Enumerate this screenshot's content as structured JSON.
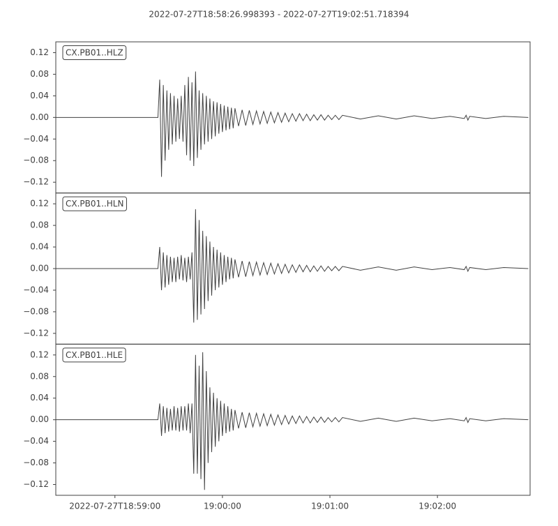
{
  "chart_data": [
    {
      "type": "line",
      "title": "2022-07-27T18:58:26.998393  -  2022-07-27T19:02:51.718394",
      "xlim": [
        0,
        264.72
      ],
      "ylim": [
        -0.14,
        0.14
      ],
      "yticks": [
        {
          "value": -0.12,
          "label": "−0.12"
        },
        {
          "value": -0.08,
          "label": "−0.08"
        },
        {
          "value": -0.04,
          "label": "−0.04"
        },
        {
          "value": 0,
          "label": "0.00"
        },
        0.04,
        0.08,
        0.12
      ],
      "x": [
        0,
        57,
        58,
        59,
        60,
        61,
        62,
        63,
        64,
        65,
        66,
        67,
        68,
        69,
        70,
        71,
        72,
        73,
        74,
        75,
        76,
        77,
        78,
        79,
        80,
        81,
        82,
        83,
        84,
        85,
        86,
        87,
        88,
        89,
        90,
        91,
        92,
        93,
        94,
        95,
        96,
        97,
        98,
        99,
        100,
        102,
        104,
        106,
        108,
        110,
        112,
        114,
        116,
        118,
        120,
        122,
        124,
        126,
        128,
        130,
        132,
        134,
        136,
        138,
        140,
        142,
        144,
        146,
        148,
        150,
        152,
        154,
        156,
        158,
        160,
        170,
        180,
        190,
        200,
        210,
        220,
        228,
        229,
        230,
        231,
        240,
        250,
        263.7
      ],
      "series": [
        {
          "name": "CX.PB01..HLZ",
          "color": "#404040",
          "values": [
            0,
            0,
            0.07,
            -0.11,
            0.06,
            -0.08,
            0.05,
            -0.06,
            0.045,
            -0.05,
            0.04,
            -0.045,
            0.035,
            -0.04,
            0.04,
            -0.045,
            0.06,
            -0.07,
            0.075,
            -0.08,
            0.065,
            -0.09,
            0.085,
            -0.075,
            0.05,
            -0.06,
            0.045,
            -0.05,
            0.04,
            -0.045,
            0.035,
            -0.04,
            0.03,
            -0.035,
            0.028,
            -0.03,
            0.025,
            -0.027,
            0.022,
            -0.024,
            0.02,
            -0.022,
            0.018,
            -0.02,
            0.017,
            -0.016,
            0.014,
            -0.015,
            0.013,
            -0.013,
            0.012,
            -0.012,
            0.011,
            -0.011,
            0.01,
            -0.01,
            0.009,
            -0.009,
            0.008,
            -0.008,
            0.007,
            -0.007,
            0.007,
            -0.006,
            0.006,
            -0.006,
            0.005,
            -0.005,
            0.005,
            -0.005,
            0.004,
            -0.004,
            0.004,
            -0.004,
            0.004,
            -0.003,
            0.003,
            -0.003,
            0.003,
            -0.002,
            0.002,
            -0.002,
            0.004,
            -0.005,
            0.002,
            -0.002,
            0.002,
            0
          ]
        }
      ]
    },
    {
      "type": "line",
      "xlim": [
        0,
        264.72
      ],
      "ylim": [
        -0.14,
        0.14
      ],
      "yticks": [
        {
          "value": -0.12,
          "label": "−0.12"
        },
        {
          "value": -0.08,
          "label": "−0.08"
        },
        {
          "value": -0.04,
          "label": "−0.04"
        },
        {
          "value": 0,
          "label": "0.00"
        },
        0.04,
        0.08,
        0.12
      ],
      "x": [
        0,
        57,
        58,
        59,
        60,
        61,
        62,
        63,
        64,
        65,
        66,
        67,
        68,
        69,
        70,
        71,
        72,
        73,
        74,
        75,
        76,
        77,
        78,
        79,
        80,
        81,
        82,
        83,
        84,
        85,
        86,
        87,
        88,
        89,
        90,
        91,
        92,
        93,
        94,
        95,
        96,
        97,
        98,
        99,
        100,
        102,
        104,
        106,
        108,
        110,
        112,
        114,
        116,
        118,
        120,
        122,
        124,
        126,
        128,
        130,
        132,
        134,
        136,
        138,
        140,
        142,
        144,
        146,
        148,
        150,
        152,
        154,
        156,
        158,
        160,
        170,
        180,
        190,
        200,
        210,
        220,
        228,
        229,
        230,
        231,
        240,
        250,
        263.7
      ],
      "series": [
        {
          "name": "CX.PB01..HLN",
          "color": "#404040",
          "values": [
            0,
            0,
            0.04,
            -0.04,
            0.03,
            -0.035,
            0.025,
            -0.03,
            0.022,
            -0.025,
            0.02,
            -0.025,
            0.022,
            -0.02,
            0.025,
            -0.022,
            0.02,
            -0.025,
            0.022,
            -0.02,
            0.03,
            -0.1,
            0.11,
            -0.095,
            0.09,
            -0.085,
            0.07,
            -0.075,
            0.06,
            -0.06,
            0.05,
            -0.05,
            0.04,
            -0.04,
            0.035,
            -0.035,
            0.03,
            -0.03,
            0.025,
            -0.025,
            0.022,
            -0.02,
            0.02,
            -0.018,
            0.017,
            -0.016,
            0.014,
            -0.015,
            0.013,
            -0.013,
            0.012,
            -0.012,
            0.011,
            -0.011,
            0.01,
            -0.01,
            0.009,
            -0.009,
            0.008,
            -0.008,
            0.007,
            -0.007,
            0.007,
            -0.006,
            0.006,
            -0.006,
            0.005,
            -0.005,
            0.005,
            -0.005,
            0.004,
            -0.004,
            0.004,
            -0.004,
            0.004,
            -0.003,
            0.003,
            -0.003,
            0.003,
            -0.002,
            0.002,
            -0.002,
            0.004,
            -0.005,
            0.002,
            -0.002,
            0.002,
            0
          ]
        }
      ]
    },
    {
      "type": "line",
      "xlim": [
        0,
        264.72
      ],
      "ylim": [
        -0.14,
        0.14
      ],
      "yticks": [
        {
          "value": -0.12,
          "label": "−0.12"
        },
        {
          "value": -0.08,
          "label": "−0.08"
        },
        {
          "value": -0.04,
          "label": "−0.04"
        },
        {
          "value": 0,
          "label": "0.00"
        },
        0.04,
        0.08,
        0.12
      ],
      "xticks": [
        {
          "value": 33.0,
          "label": "2022-07-27T18:59:00"
        },
        {
          "value": 93.0,
          "label": "19:00:00"
        },
        {
          "value": 153.0,
          "label": "19:01:00"
        },
        {
          "value": 213.0,
          "label": "19:02:00"
        }
      ],
      "x": [
        0,
        57,
        58,
        59,
        60,
        61,
        62,
        63,
        64,
        65,
        66,
        67,
        68,
        69,
        70,
        71,
        72,
        73,
        74,
        75,
        76,
        77,
        78,
        79,
        80,
        81,
        82,
        83,
        84,
        85,
        86,
        87,
        88,
        89,
        90,
        91,
        92,
        93,
        94,
        95,
        96,
        97,
        98,
        99,
        100,
        102,
        104,
        106,
        108,
        110,
        112,
        114,
        116,
        118,
        120,
        122,
        124,
        126,
        128,
        130,
        132,
        134,
        136,
        138,
        140,
        142,
        144,
        146,
        148,
        150,
        152,
        154,
        156,
        158,
        160,
        170,
        180,
        190,
        200,
        210,
        220,
        228,
        229,
        230,
        231,
        240,
        250,
        263.7
      ],
      "series": [
        {
          "name": "CX.PB01..HLE",
          "color": "#404040",
          "values": [
            0,
            0,
            0.03,
            -0.03,
            0.025,
            -0.025,
            0.022,
            -0.022,
            0.02,
            -0.02,
            0.025,
            -0.02,
            0.022,
            -0.022,
            0.025,
            -0.02,
            0.025,
            -0.02,
            0.03,
            -0.025,
            0.03,
            -0.1,
            0.12,
            -0.1,
            0.1,
            -0.11,
            0.125,
            -0.13,
            0.09,
            -0.08,
            0.06,
            -0.06,
            0.05,
            -0.05,
            0.04,
            -0.04,
            0.035,
            -0.03,
            0.03,
            -0.025,
            0.025,
            -0.022,
            0.02,
            -0.02,
            0.018,
            -0.016,
            0.014,
            -0.015,
            0.013,
            -0.013,
            0.012,
            -0.012,
            0.011,
            -0.011,
            0.01,
            -0.01,
            0.009,
            -0.009,
            0.008,
            -0.008,
            0.007,
            -0.007,
            0.007,
            -0.006,
            0.006,
            -0.006,
            0.005,
            -0.005,
            0.005,
            -0.005,
            0.004,
            -0.004,
            0.004,
            -0.004,
            0.004,
            -0.003,
            0.003,
            -0.003,
            0.003,
            -0.002,
            0.002,
            -0.002,
            0.004,
            -0.005,
            0.002,
            -0.002,
            0.002,
            0
          ]
        }
      ]
    }
  ]
}
